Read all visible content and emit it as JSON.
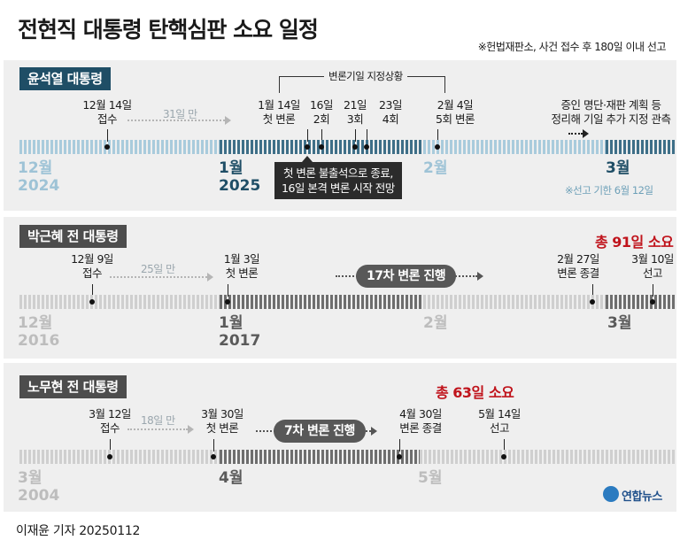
{
  "title": "전현직 대통령 탄핵심판 소요 일정",
  "note": "※헌법재판소, 사건 접수 후 180일 이내 선고",
  "credit": "이재윤 기자  20250112",
  "logo": "연합뉴스",
  "sections": [
    {
      "label": "윤석열 대통령",
      "label_color": "#1f4e66",
      "bracket_label": "변론기일 지정상황",
      "events": [
        {
          "text1": "12월 14일",
          "text2": "접수"
        },
        {
          "text1": "1월 14일",
          "text2": "첫 변론"
        },
        {
          "text1": "16일",
          "text2": "2회"
        },
        {
          "text1": "21일",
          "text2": "3회"
        },
        {
          "text1": "23일",
          "text2": "4회"
        },
        {
          "text1": "2월 4일",
          "text2": "5회 변론"
        },
        {
          "text1": "증인 명단·재판 계획 등",
          "text2": "정리해 기일 추가 지정 관측"
        }
      ],
      "gap": "31일 만",
      "months": [
        {
          "m": "12월",
          "y": "2024"
        },
        {
          "m": "1월",
          "y": "2025"
        },
        {
          "m": "2월",
          "y": ""
        },
        {
          "m": "3월",
          "y": ""
        }
      ],
      "callout": [
        "첫 변론 불출석으로 종료,",
        "16일 본격 변론 시작 전망"
      ],
      "deadline": "※선고 기한 6월 12일"
    },
    {
      "label": "박근혜 전 대통령",
      "label_color": "#4d4d4d",
      "total": "총 91일 소요",
      "events": [
        {
          "text1": "12월 9일",
          "text2": "접수"
        },
        {
          "text1": "1월 3일",
          "text2": "첫 변론"
        },
        {
          "text1": "2월 27일",
          "text2": "변론 종결"
        },
        {
          "text1": "3월 10일",
          "text2": "선고"
        }
      ],
      "gap": "25일 만",
      "pill": "17차 변론 진행",
      "months": [
        {
          "m": "12월",
          "y": "2016"
        },
        {
          "m": "1월",
          "y": "2017"
        },
        {
          "m": "2월",
          "y": ""
        },
        {
          "m": "3월",
          "y": ""
        }
      ]
    },
    {
      "label": "노무현 전 대통령",
      "label_color": "#4d4d4d",
      "total": "총 63일 소요",
      "events": [
        {
          "text1": "3월 12일",
          "text2": "접수"
        },
        {
          "text1": "3월 30일",
          "text2": "첫 변론"
        },
        {
          "text1": "4월 30일",
          "text2": "변론 종결"
        },
        {
          "text1": "5월 14일",
          "text2": "선고"
        }
      ],
      "gap": "18일 만",
      "pill": "7차 변론 진행",
      "months": [
        {
          "m": "3월",
          "y": "2004"
        },
        {
          "m": "4월",
          "y": ""
        },
        {
          "m": "5월",
          "y": ""
        }
      ]
    }
  ]
}
